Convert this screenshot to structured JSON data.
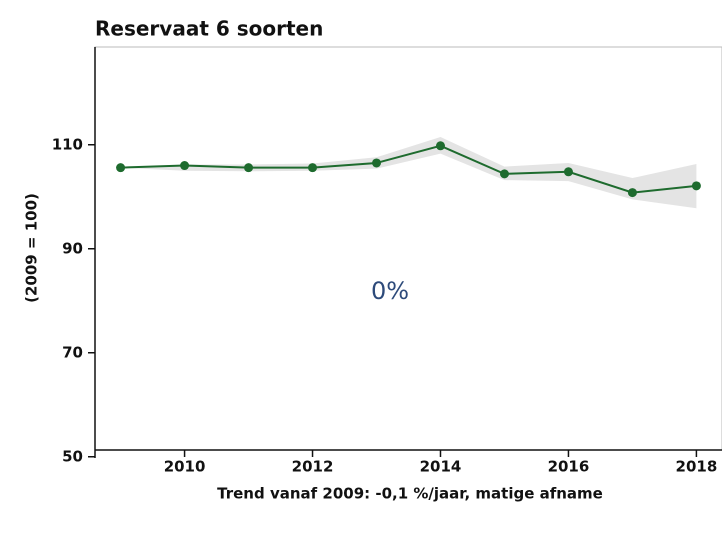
{
  "chart_data": {
    "type": "line",
    "title": "Reservaat 6 soorten",
    "ylabel": "(2009 = 100)",
    "xlabel": "Trend vanaf 2009: -0,1 %/jaar, matige afname",
    "annotation": "0%",
    "x": [
      2009,
      2010,
      2011,
      2012,
      2013,
      2014,
      2015,
      2016,
      2017,
      2018
    ],
    "values": [
      105.6,
      106.0,
      105.6,
      105.6,
      106.5,
      109.8,
      104.4,
      104.8,
      100.8,
      102.1
    ],
    "band_lower": [
      105.6,
      105.0,
      104.9,
      105.0,
      105.4,
      108.3,
      103.2,
      103.0,
      99.5,
      97.8
    ],
    "band_upper": [
      105.6,
      106.2,
      106.2,
      106.4,
      107.6,
      111.5,
      105.8,
      106.5,
      103.6,
      106.3
    ],
    "color": "#1e6b2e",
    "band_color": "#e4e4e4",
    "xlim": [
      2008.6,
      2018.4
    ],
    "xticks": [
      2010,
      2012,
      2014,
      2016,
      2018
    ],
    "ylim": [
      51.3,
      128.8
    ],
    "yticks": [
      50,
      70,
      90,
      110
    ]
  }
}
